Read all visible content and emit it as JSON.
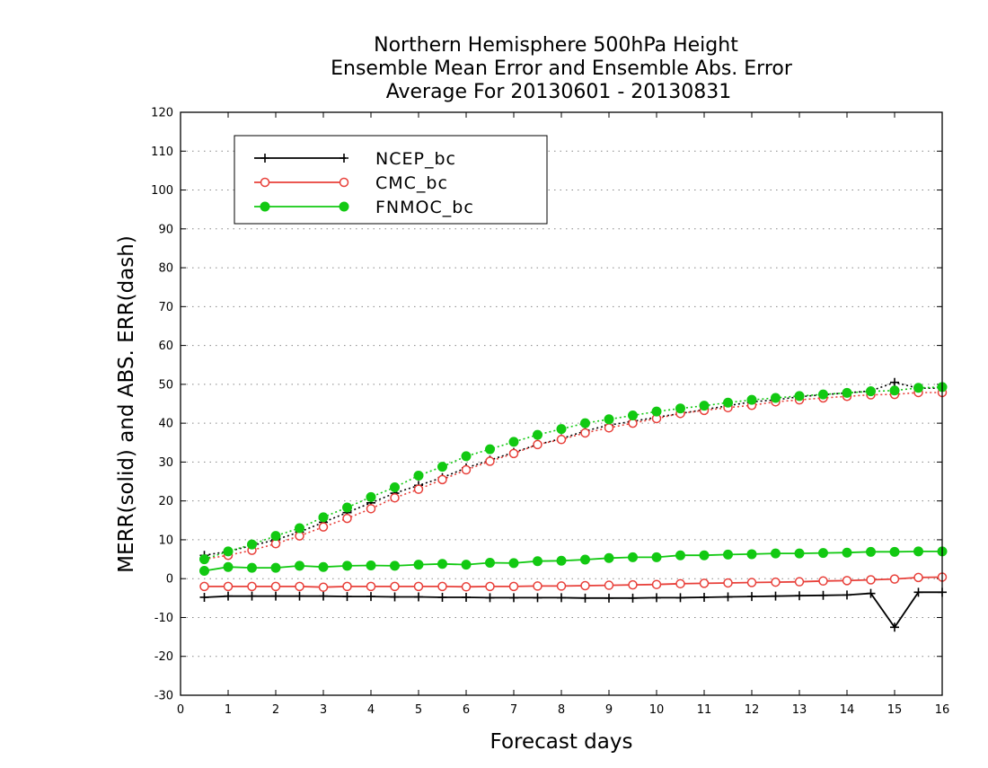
{
  "chart_data": {
    "type": "line",
    "title": "Northern Hemisphere 500hPa Height",
    "subtitle": "Ensemble Mean Error and Ensemble Abs. Error",
    "period": "Average For 20130601 - 20130831",
    "xlabel": "Forecast days",
    "ylabel": "MERR(solid) and ABS. ERR(dash)",
    "xlim": [
      0,
      16
    ],
    "ylim": [
      -30,
      120
    ],
    "x_ticks": [
      0,
      1,
      2,
      3,
      4,
      5,
      6,
      7,
      8,
      9,
      10,
      11,
      12,
      13,
      14,
      15,
      16
    ],
    "y_ticks": [
      -30,
      -20,
      -10,
      0,
      10,
      20,
      30,
      40,
      50,
      60,
      70,
      80,
      90,
      100,
      110,
      120
    ],
    "grid": true,
    "legend_position": "top-left",
    "x": [
      0.5,
      1,
      1.5,
      2,
      2.5,
      3,
      3.5,
      4,
      4.5,
      5,
      5.5,
      6,
      6.5,
      7,
      7.5,
      8,
      8.5,
      9,
      9.5,
      10,
      10.5,
      11,
      11.5,
      12,
      12.5,
      13,
      13.5,
      14,
      14.5,
      15,
      15.5,
      16
    ],
    "series": [
      {
        "name": "NCEP_bc",
        "color": "#000000",
        "marker": "plus",
        "merr": [
          -4.8,
          -4.5,
          -4.5,
          -4.5,
          -4.5,
          -4.5,
          -4.6,
          -4.6,
          -4.7,
          -4.7,
          -4.8,
          -4.8,
          -4.9,
          -4.9,
          -4.9,
          -4.9,
          -5,
          -5,
          -5,
          -4.9,
          -4.9,
          -4.8,
          -4.7,
          -4.6,
          -4.5,
          -4.4,
          -4.3,
          -4.2,
          -3.8,
          -12.5,
          -3.5,
          -3.5
        ],
        "abs_err": [
          6,
          7,
          8.5,
          10,
          12,
          14.5,
          17,
          19.5,
          22,
          24,
          26,
          28.5,
          30.5,
          32.5,
          34.5,
          36,
          38,
          39.5,
          40.5,
          41.5,
          42.5,
          43.5,
          44.5,
          45.5,
          46,
          46.8,
          47.3,
          47.8,
          48.3,
          50.5,
          49,
          49
        ]
      },
      {
        "name": "CMC_bc",
        "color": "#e8403a",
        "marker": "open-circle",
        "merr": [
          -2,
          -2,
          -2,
          -2,
          -2,
          -2.2,
          -2,
          -2,
          -2,
          -2,
          -2,
          -2.1,
          -2,
          -2,
          -1.9,
          -1.9,
          -1.8,
          -1.7,
          -1.6,
          -1.5,
          -1.3,
          -1.2,
          -1.1,
          -1,
          -0.9,
          -0.8,
          -0.6,
          -0.5,
          -0.3,
          -0.1,
          0.3,
          0.4
        ],
        "abs_err": [
          5,
          6,
          7.3,
          9,
          11,
          13.3,
          15.5,
          18,
          20.8,
          23,
          25.5,
          28,
          30.2,
          32.2,
          34.5,
          35.8,
          37.5,
          38.8,
          40,
          41.2,
          42.5,
          43.3,
          44,
          44.6,
          45.5,
          46,
          46.5,
          46.9,
          47.3,
          47.4,
          47.9,
          47.9
        ]
      },
      {
        "name": "FNMOC_bc",
        "color": "#12c912",
        "marker": "filled-circle",
        "merr": [
          2,
          3,
          2.8,
          2.8,
          3.3,
          3,
          3.3,
          3.4,
          3.3,
          3.6,
          3.8,
          3.6,
          4.1,
          4,
          4.5,
          4.6,
          4.9,
          5.3,
          5.5,
          5.5,
          6,
          6,
          6.2,
          6.3,
          6.5,
          6.5,
          6.6,
          6.7,
          6.9,
          6.9,
          7,
          7
        ],
        "abs_err": [
          5,
          7,
          8.8,
          11,
          13,
          15.8,
          18.3,
          21,
          23.5,
          26.5,
          28.8,
          31.5,
          33.3,
          35.2,
          37,
          38.5,
          40,
          41,
          42,
          43,
          43.8,
          44.5,
          45.3,
          46,
          46.5,
          47,
          47.4,
          47.8,
          48.2,
          48.4,
          49.1,
          49.3
        ]
      }
    ]
  }
}
